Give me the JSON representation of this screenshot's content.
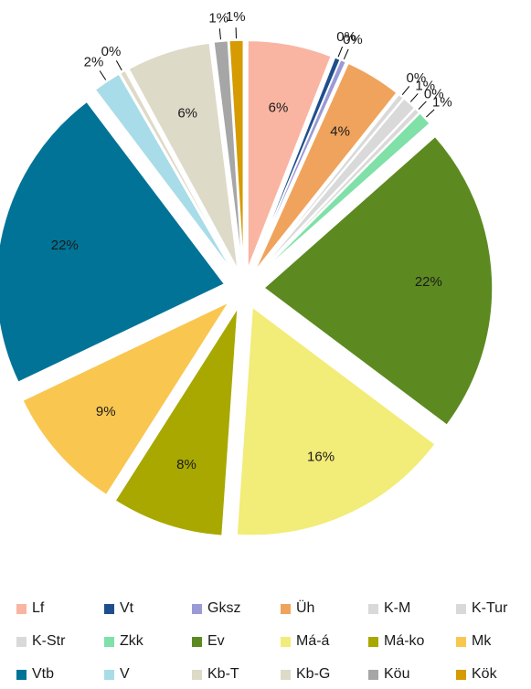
{
  "chart_data": {
    "type": "pie",
    "exploded": true,
    "legend_position": "bottom",
    "categories": [
      "Lf",
      "Vt",
      "Gksz",
      "Üh",
      "K-M",
      "K-Tur",
      "K-Str",
      "Zkk",
      "Ev",
      "Má-á",
      "Má-ko",
      "Mk",
      "Vtb",
      "V",
      "Kb-T",
      "Kb-G",
      "Köu",
      "Kök"
    ],
    "values": [
      6,
      0.4,
      0.4,
      4,
      0.4,
      1,
      0.4,
      1,
      22,
      16,
      8,
      9,
      22,
      2,
      0.4,
      6,
      1,
      1
    ],
    "data_labels": [
      "6%",
      "0%",
      "0%",
      "4%",
      "0%",
      "1%",
      "0%",
      "1%",
      "22%",
      "16%",
      "8%",
      "9%",
      "22%",
      "2%",
      "0%",
      "6%",
      "1%",
      "1%"
    ],
    "colors": [
      "#f9b5a2",
      "#1f4e8c",
      "#9a9ad6",
      "#f0a35c",
      "#d9d9d9",
      "#d9d9d9",
      "#d9d9d9",
      "#7fe0a8",
      "#5c8a20",
      "#f2ec78",
      "#a8a800",
      "#f9c650",
      "#007396",
      "#a8dce8",
      "#dedac8",
      "#dedac8",
      "#a6a6a6",
      "#d59b00"
    ]
  }
}
